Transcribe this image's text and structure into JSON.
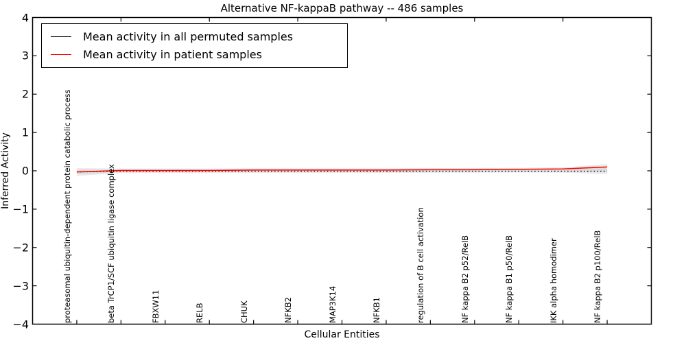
{
  "title": "Alternative NF-kappaB pathway -- 486 samples",
  "legend": {
    "entries": [
      {
        "label": "Mean activity in all permuted samples",
        "color": "#000000"
      },
      {
        "label": "Mean activity in patient samples",
        "color": "#ff0000"
      }
    ]
  },
  "chart_data": {
    "type": "line",
    "title": "Alternative NF-kappaB pathway -- 486 samples",
    "xlabel": "Cellular Entities",
    "ylabel": "Inferred Activity",
    "ylim": [
      -4,
      4
    ],
    "yticks": [
      "4",
      "3",
      "2",
      "1",
      "0",
      "−1",
      "−2",
      "−3",
      "−4"
    ],
    "ytick_values": [
      4,
      3,
      2,
      1,
      0,
      -1,
      -2,
      -3,
      -4
    ],
    "grid": false,
    "legend_position": "upper left",
    "categories": [
      "proteasomal ubiquitin-dependent protein catabolic process",
      "beta TrCP1/SCF ubiquitin ligase complex",
      "FBXW11",
      "RELB",
      "CHUK",
      "NFKB2",
      "MAP3K14",
      "NFKB1",
      "regulation of B cell activation",
      "NF kappa B2 p52/RelB",
      "NF kappa B1 p50/RelB",
      "IKK alpha homodimer",
      "NF kappa B2 p100/RelB"
    ],
    "series": [
      {
        "name": "Mean activity in all permuted samples",
        "color": "#000000",
        "line_style": "dotted",
        "values": [
          -0.03,
          -0.01,
          -0.01,
          -0.01,
          -0.01,
          -0.01,
          -0.01,
          -0.01,
          -0.01,
          -0.01,
          -0.01,
          -0.01,
          -0.01
        ]
      },
      {
        "name": "Mean activity in patient samples",
        "color": "#ff0000",
        "line_style": "solid",
        "values": [
          -0.03,
          0.01,
          0.01,
          0.01,
          0.02,
          0.02,
          0.02,
          0.02,
          0.03,
          0.03,
          0.04,
          0.05,
          0.1
        ]
      }
    ],
    "band": {
      "description": "light gray uncertainty band around mean lines",
      "outer_color": "#e9e9e9",
      "inner_color": "#dcdcdc",
      "half_widths": [
        0.1,
        0.06,
        0.06,
        0.06,
        0.06,
        0.06,
        0.06,
        0.06,
        0.06,
        0.06,
        0.06,
        0.07,
        0.13
      ]
    }
  }
}
